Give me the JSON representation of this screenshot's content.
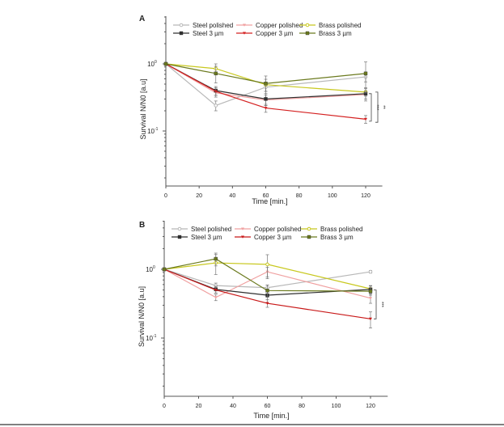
{
  "chart_data": [
    {
      "panel": "A",
      "type": "line",
      "title": "",
      "xlabel": "Time [min.]",
      "ylabel": "Survival N/N0 [a.u]",
      "xlim": [
        0,
        130
      ],
      "xticks": [
        0,
        20,
        40,
        60,
        80,
        100,
        120
      ],
      "ylim": [
        0.015,
        5.5
      ],
      "yscale": "log",
      "yticks": [
        {
          "value": 1,
          "label": "10",
          "exp": "0"
        },
        {
          "value": 0.1,
          "label": "10",
          "exp": "-1"
        }
      ],
      "grid": false,
      "legend": "top",
      "x": [
        0,
        30,
        60,
        120
      ],
      "series": [
        {
          "name": "Steel polished",
          "color": "#b8b8b8",
          "marker": "circle-open",
          "values": [
            1.0,
            0.24,
            0.45,
            0.64
          ],
          "err": [
            0,
            0.04,
            0.06,
            0.1
          ]
        },
        {
          "name": "Copper polished",
          "color": "#f0a0a0",
          "marker": "triangle-down",
          "values": [
            1.0,
            0.37,
            0.29,
            0.35
          ],
          "err": [
            0,
            0.05,
            0.05,
            0.05
          ]
        },
        {
          "name": "Brass polished",
          "color": "#c8c81e",
          "marker": "circle-open",
          "values": [
            1.0,
            0.85,
            0.49,
            0.38
          ],
          "err": [
            0,
            0.15,
            0.1,
            0.05
          ]
        },
        {
          "name": "Steel 3 µm",
          "color": "#303030",
          "marker": "square",
          "values": [
            1.0,
            0.4,
            0.3,
            0.36
          ],
          "err": [
            0,
            0.06,
            0.06,
            0.08
          ]
        },
        {
          "name": "Copper 3 µm",
          "color": "#d42020",
          "marker": "triangle-down",
          "values": [
            1.0,
            0.39,
            0.22,
            0.15
          ],
          "err": [
            0,
            0.05,
            0.03,
            0.02
          ]
        },
        {
          "name": "Brass 3 µm",
          "color": "#6b7a1e",
          "marker": "square",
          "values": [
            1.0,
            0.72,
            0.51,
            0.72
          ],
          "err": [
            0,
            0.2,
            0.15,
            0.35
          ]
        }
      ],
      "annotations": [
        {
          "text": "***",
          "from": 0.36,
          "to": 0.14
        },
        {
          "text": "**",
          "from": 0.38,
          "to": 0.135
        }
      ]
    },
    {
      "panel": "B",
      "type": "line",
      "title": "",
      "xlabel": "Time [min.]",
      "ylabel": "Survival N/N0 [a.u]",
      "xlim": [
        0,
        130
      ],
      "xticks": [
        0,
        20,
        40,
        60,
        80,
        100,
        120
      ],
      "ylim": [
        0.013,
        6.5
      ],
      "yscale": "log",
      "yticks": [
        {
          "value": 1,
          "label": "10",
          "exp": "0"
        },
        {
          "value": 0.1,
          "label": "10",
          "exp": "-1"
        }
      ],
      "grid": false,
      "legend": "top",
      "x": [
        0,
        30,
        60,
        120
      ],
      "series": [
        {
          "name": "Steel polished",
          "color": "#b8b8b8",
          "marker": "circle-open",
          "values": [
            1.0,
            0.58,
            0.54,
            0.92
          ],
          "err": [
            0,
            0.05,
            0.05,
            0.04
          ]
        },
        {
          "name": "Copper polished",
          "color": "#f0a0a0",
          "marker": "triangle-down",
          "values": [
            1.0,
            0.39,
            0.92,
            0.38
          ],
          "err": [
            0,
            0.04,
            0.15,
            0.06
          ]
        },
        {
          "name": "Brass polished",
          "color": "#c8c81e",
          "marker": "circle-open",
          "values": [
            1.0,
            1.24,
            1.18,
            0.52
          ],
          "err": [
            0,
            0.4,
            0.45,
            0.06
          ]
        },
        {
          "name": "Steel 3 µm",
          "color": "#303030",
          "marker": "square",
          "values": [
            1.0,
            0.51,
            0.42,
            0.51
          ],
          "err": [
            0,
            0.06,
            0.06,
            0.06
          ]
        },
        {
          "name": "Copper 3 µm",
          "color": "#c81818",
          "marker": "triangle-down",
          "values": [
            1.0,
            0.5,
            0.32,
            0.19
          ],
          "err": [
            0,
            0.05,
            0.04,
            0.05
          ]
        },
        {
          "name": "Brass 3 µm",
          "color": "#6b7a1e",
          "marker": "square",
          "values": [
            1.0,
            1.42,
            0.49,
            0.48
          ],
          "err": [
            0,
            0.3,
            0.1,
            0.06
          ]
        }
      ],
      "annotations": [
        {
          "text": "***",
          "from": 0.5,
          "to": 0.19
        }
      ]
    }
  ]
}
